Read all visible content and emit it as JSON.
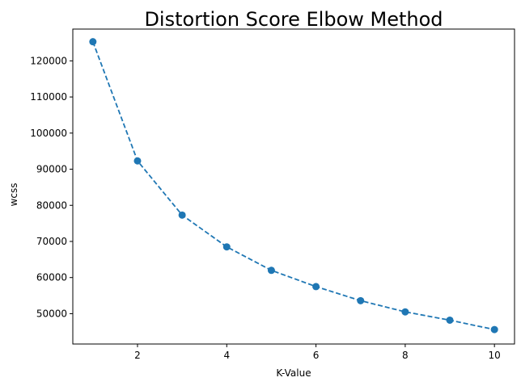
{
  "chart_data": {
    "type": "line",
    "title": "Distortion Score Elbow Method",
    "xlabel": "K-Value",
    "ylabel": "wcss",
    "x": [
      1,
      2,
      3,
      4,
      5,
      6,
      7,
      8,
      9,
      10
    ],
    "series": [
      {
        "values": [
          125300,
          92300,
          77300,
          68500,
          62000,
          57500,
          53600,
          50500,
          48200,
          45600
        ],
        "color": "#1f77b4",
        "line_style": "dashed",
        "marker": "circle"
      }
    ],
    "xlim": [
      0.55,
      10.45
    ],
    "ylim": [
      41600,
      128800
    ],
    "xticks": [
      2,
      4,
      6,
      8,
      10
    ],
    "yticks": [
      50000,
      60000,
      70000,
      80000,
      90000,
      100000,
      110000,
      120000
    ],
    "grid": false,
    "legend": "none"
  }
}
